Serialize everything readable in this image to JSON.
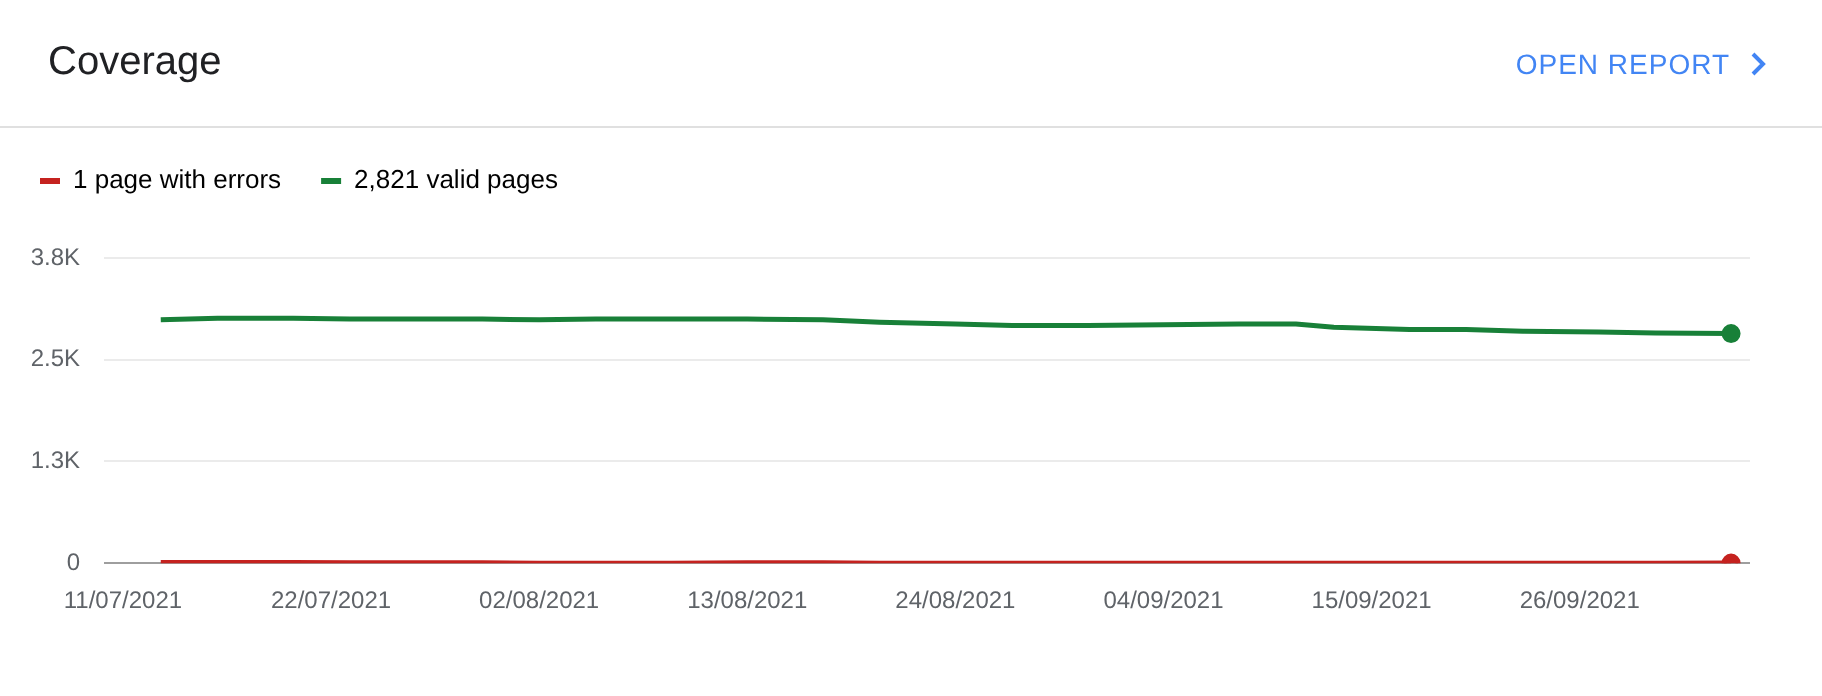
{
  "chart_data": {
    "type": "line",
    "title": "Coverage",
    "annotations": [
      "OPEN REPORT"
    ],
    "x": [
      "2021-07-13",
      "2021-07-16",
      "2021-07-20",
      "2021-07-23",
      "2021-07-27",
      "2021-07-30",
      "2021-08-02",
      "2021-08-05",
      "2021-08-09",
      "2021-08-13",
      "2021-08-17",
      "2021-08-20",
      "2021-08-24",
      "2021-08-27",
      "2021-08-31",
      "2021-09-04",
      "2021-09-08",
      "2021-09-11",
      "2021-09-13",
      "2021-09-17",
      "2021-09-20",
      "2021-09-23",
      "2021-09-27",
      "2021-09-30",
      "2021-10-04"
    ],
    "series": [
      {
        "name": "1 page with errors",
        "color": "#c5221f",
        "values": [
          10,
          10,
          10,
          5,
          5,
          5,
          0,
          0,
          0,
          5,
          5,
          0,
          0,
          0,
          0,
          0,
          0,
          0,
          0,
          0,
          0,
          0,
          0,
          0,
          1
        ]
      },
      {
        "name": "2,821 valid pages",
        "color": "#188038",
        "values": [
          2990,
          3010,
          3010,
          3000,
          3000,
          3000,
          2990,
          3000,
          3000,
          3000,
          2990,
          2960,
          2940,
          2920,
          2920,
          2930,
          2940,
          2940,
          2900,
          2870,
          2870,
          2850,
          2840,
          2830,
          2821
        ]
      }
    ],
    "xlim": [
      "2021-07-10",
      "2021-10-05"
    ],
    "xticks": [
      {
        "value": "2021-07-11",
        "label": "11/07/2021"
      },
      {
        "value": "2021-07-22",
        "label": "22/07/2021"
      },
      {
        "value": "2021-08-02",
        "label": "02/08/2021"
      },
      {
        "value": "2021-08-13",
        "label": "13/08/2021"
      },
      {
        "value": "2021-08-24",
        "label": "24/08/2021"
      },
      {
        "value": "2021-09-04",
        "label": "04/09/2021"
      },
      {
        "value": "2021-09-15",
        "label": "15/09/2021"
      },
      {
        "value": "2021-09-26",
        "label": "26/09/2021"
      }
    ],
    "ylim": [
      0,
      3750
    ],
    "yticks": [
      0,
      {
        "value": 1250,
        "label": "1.3K"
      },
      {
        "value": 2500,
        "label": "2.5K"
      },
      {
        "value": 3750,
        "label": "3.8K"
      }
    ],
    "grid": "y",
    "legend": "top left",
    "line_style": "solid"
  }
}
